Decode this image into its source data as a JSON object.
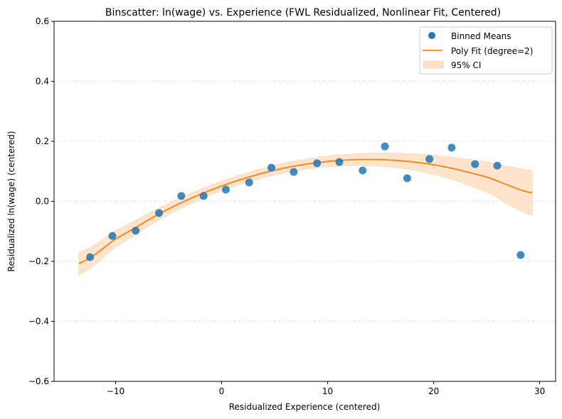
{
  "chart_data": {
    "type": "scatter",
    "title": "Binscatter: ln(wage) vs. Experience (FWL Residualized, Nonlinear Fit, Centered)",
    "xlabel": "Residualized Experience (centered)",
    "ylabel": "Residualized ln(wage) (centered)",
    "xlim": [
      -15.8,
      31.5
    ],
    "ylim": [
      -0.6,
      0.6
    ],
    "xticks": [
      -10,
      0,
      10,
      20,
      30
    ],
    "xtick_labels": [
      "−10",
      "0",
      "10",
      "20",
      "30"
    ],
    "yticks": [
      -0.6,
      -0.4,
      -0.2,
      0.0,
      0.2,
      0.4,
      0.6
    ],
    "ytick_labels": [
      "−0.6",
      "−0.4",
      "−0.2",
      "0.0",
      "0.2",
      "0.4",
      "0.6"
    ],
    "grid": "horizontal dashed",
    "legend_position": "top-right",
    "legend": [
      {
        "label": "Binned Means",
        "kind": "marker"
      },
      {
        "label": "Poly Fit (degree=2)",
        "kind": "line"
      },
      {
        "label": "95% CI",
        "kind": "patch"
      }
    ],
    "colors": {
      "points": "#1f77b4",
      "fit": "#ff7f0e",
      "ci": "#ffe1c8"
    },
    "series": [
      {
        "name": "Binned Means",
        "type": "scatter",
        "x": [
          -12.4,
          -10.3,
          -8.1,
          -5.9,
          -3.8,
          -1.7,
          0.4,
          2.6,
          4.7,
          6.8,
          9.0,
          11.1,
          13.3,
          15.4,
          17.5,
          19.6,
          21.7,
          23.9,
          26.0,
          28.2
        ],
        "y": [
          -0.186,
          -0.115,
          -0.098,
          -0.039,
          0.018,
          0.018,
          0.039,
          0.063,
          0.112,
          0.098,
          0.127,
          0.131,
          0.103,
          0.183,
          0.077,
          0.141,
          0.179,
          0.124,
          0.119,
          -0.179
        ]
      },
      {
        "name": "Poly Fit (degree=2)",
        "type": "line",
        "x": [
          -13.46,
          -10,
          -5,
          0,
          5,
          10,
          15,
          20,
          25,
          29.3
        ],
        "y": [
          -0.207,
          -0.1245,
          -0.025,
          0.051,
          0.104,
          0.133,
          0.139,
          0.122,
          0.081,
          0.028
        ]
      },
      {
        "name": "95% CI",
        "type": "band",
        "x": [
          -13.46,
          -10,
          -5,
          0,
          5,
          10,
          15,
          20,
          25,
          29.3
        ],
        "lower": [
          -0.244,
          -0.1515,
          -0.044,
          0.035,
          0.088,
          0.115,
          0.117,
          0.09,
          0.031,
          -0.047
        ],
        "upper": [
          -0.17,
          -0.0975,
          -0.006,
          0.067,
          0.12,
          0.151,
          0.161,
          0.154,
          0.131,
          0.103
        ]
      }
    ]
  }
}
